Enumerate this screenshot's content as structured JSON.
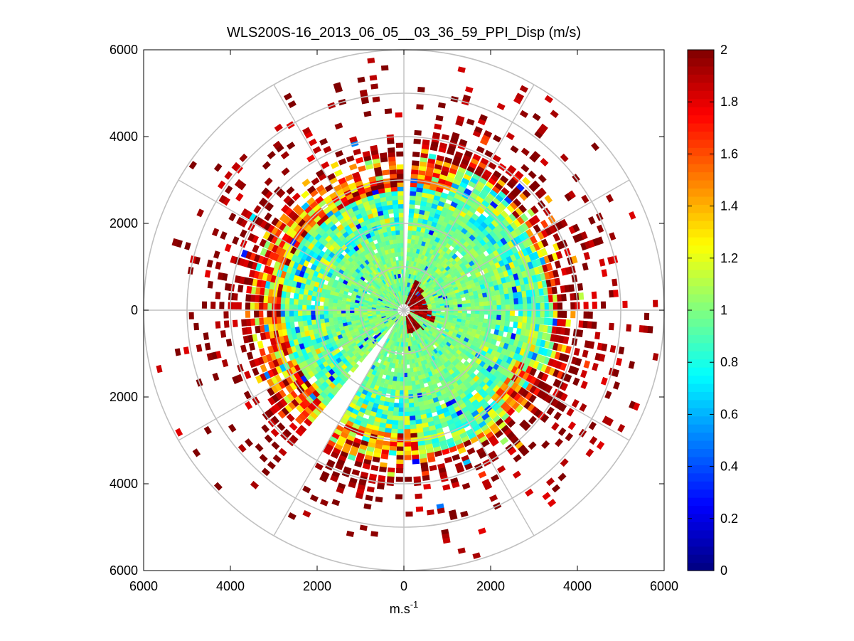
{
  "chart_data": {
    "type": "heatmap",
    "subtype": "polar-ppi-scan",
    "title": "WLS200S-16_2013_06_05__03_36_59_PPI_Disp (m/s)",
    "xlabel_base": "m.s",
    "xlabel_exp": "-1",
    "ylabel": "",
    "xlim": [
      -6000,
      6000
    ],
    "ylim": [
      -6000,
      6000
    ],
    "x_ticks": [
      -6000,
      -4000,
      -2000,
      0,
      2000,
      4000,
      6000
    ],
    "x_tick_labels": [
      "6000",
      "4000",
      "2000",
      "0",
      "2000",
      "4000",
      "6000"
    ],
    "y_ticks": [
      6000,
      4000,
      2000,
      0,
      -2000,
      -4000,
      -6000
    ],
    "y_tick_labels": [
      "6000",
      "4000",
      "2000",
      "0",
      "2000",
      "4000",
      "6000"
    ],
    "polar_grid": {
      "rings_m": [
        1000,
        2000,
        3000,
        4000,
        5000,
        6000
      ],
      "spoke_angles_deg": [
        0,
        30,
        60,
        90,
        120,
        150,
        180,
        210,
        240,
        270,
        300,
        330
      ],
      "color": "#c0c0c0"
    },
    "colorbar": {
      "colormap": "jet",
      "clim": [
        0,
        2
      ],
      "ticks": [
        0,
        0.2,
        0.4,
        0.6,
        0.8,
        1,
        1.2,
        1.4,
        1.6,
        1.8,
        2
      ],
      "tick_labels": [
        "0",
        "0.2",
        "0.4",
        "0.6",
        "0.8",
        "1",
        "1.2",
        "1.4",
        "1.6",
        "1.8",
        "2"
      ]
    },
    "scan": {
      "range_bin_m": 100,
      "azimuth_step_deg": 3,
      "dense_max_range_m": 4000,
      "sparse_max_range_m": 6000,
      "gap_sectors_bearing_deg": [
        [
          0,
          4
        ],
        [
          211,
          219
        ]
      ],
      "value_zones": [
        {
          "range_m": [
            0,
            1800
          ],
          "value_mean": 1.0,
          "value_spread": 0.12
        },
        {
          "range_m": [
            1800,
            2800
          ],
          "value_mean": 0.95,
          "value_spread": 0.28
        },
        {
          "range_m": [
            2800,
            3800
          ],
          "value_mean": 1.55,
          "value_spread": 0.5
        },
        {
          "range_m": [
            3800,
            6000
          ],
          "value_mean": 1.95,
          "value_spread": 0.15
        }
      ],
      "high_value_bearings_deg": [
        [
          20,
          115
        ],
        [
          135,
          175
        ]
      ]
    }
  }
}
